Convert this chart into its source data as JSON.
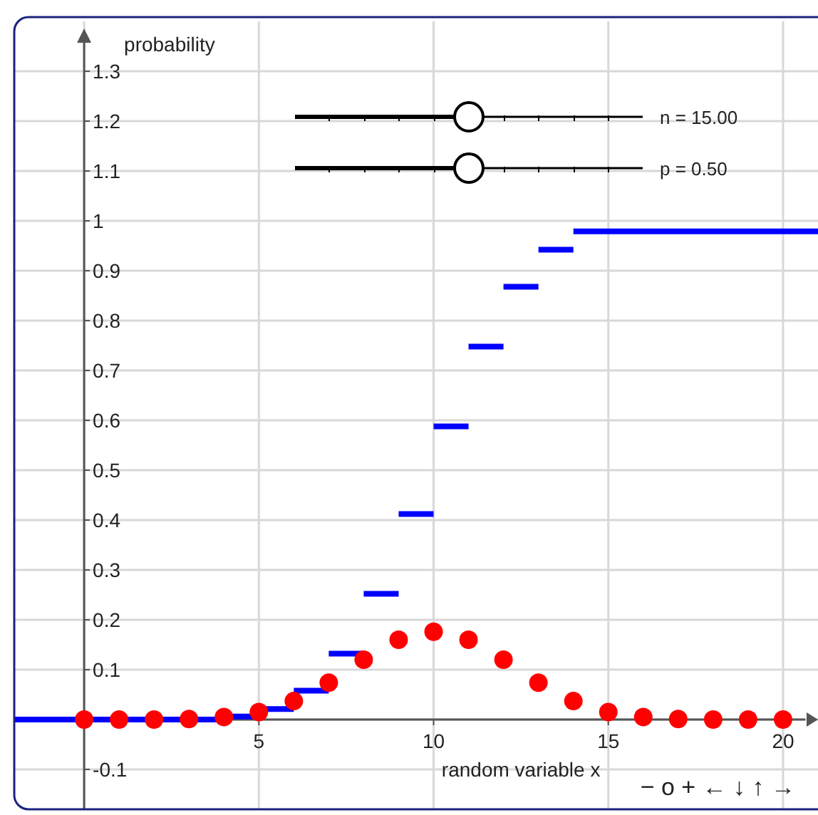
{
  "chart_data": {
    "type": "scatter",
    "xlabel": "random variable x",
    "ylabel": "probability",
    "xlim": [
      -2,
      21
    ],
    "ylim": [
      -0.18,
      1.4
    ],
    "xticks": [
      {
        "value": 0,
        "label": null
      },
      5,
      10,
      15,
      20
    ],
    "yticks": [
      -0.1,
      {
        "value": 0,
        "label": null
      },
      0.1,
      0.2,
      0.3,
      0.4,
      0.5,
      0.6,
      0.7,
      0.8,
      0.9,
      1,
      1.1,
      1.2,
      1.3
    ],
    "grid": true,
    "series": [
      {
        "type": "step",
        "color": "#0000ff",
        "x": [
          -2,
          0,
          1,
          2,
          3,
          4,
          5,
          6,
          7,
          8,
          9,
          10,
          11,
          12,
          13,
          14,
          21
        ],
        "values": [
          0,
          0,
          0,
          0,
          0,
          0.006,
          0.021,
          0.058,
          0.132,
          0.252,
          0.412,
          0.588,
          0.748,
          0.868,
          0.942,
          0.979,
          0.979
        ]
      },
      {
        "marker": "circle",
        "color": "#ff0000",
        "x": [
          0,
          1,
          2,
          3,
          4,
          5,
          6,
          7,
          8,
          9,
          10,
          11,
          12,
          13,
          14,
          15,
          16,
          17,
          18,
          19,
          20
        ],
        "values": [
          0,
          0,
          0,
          0.001,
          0.005,
          0.015,
          0.037,
          0.074,
          0.12,
          0.16,
          0.176,
          0.16,
          0.12,
          0.074,
          0.037,
          0.015,
          0.005,
          0.001,
          0,
          0,
          0
        ]
      }
    ],
    "annotations": [
      "n = 15.00",
      "p = 0.50",
      "− o + ← ↓ ↑ →"
    ]
  }
}
